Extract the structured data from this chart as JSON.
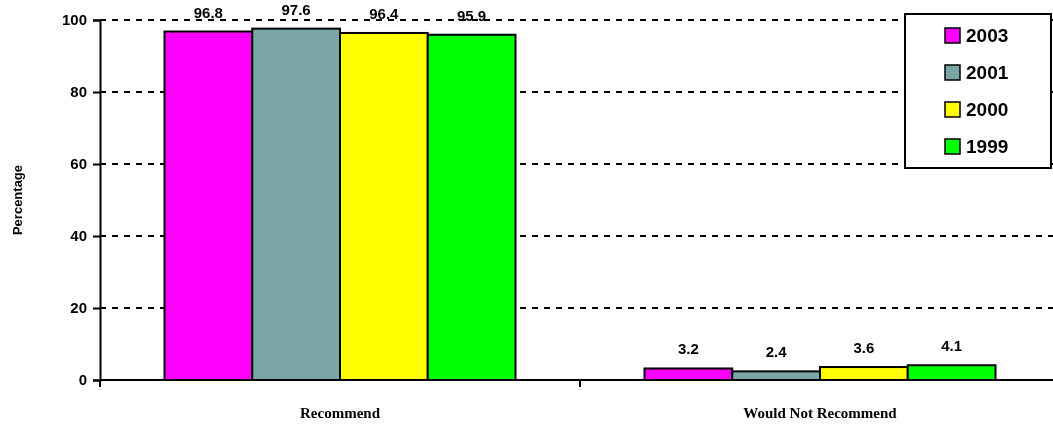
{
  "chart_data": {
    "type": "bar",
    "categories": [
      "Recommend",
      "Would Not Recommend"
    ],
    "series": [
      {
        "name": "2003",
        "color": "#ff00ff",
        "values": [
          96.8,
          3.2
        ]
      },
      {
        "name": "2001",
        "color": "#7aa6a6",
        "values": [
          97.6,
          2.4
        ]
      },
      {
        "name": "2000",
        "color": "#ffff00",
        "values": [
          96.4,
          3.6
        ]
      },
      {
        "name": "1999",
        "color": "#00ff00",
        "values": [
          95.9,
          4.1
        ]
      }
    ],
    "ylabel": "Percentage",
    "ylim": [
      0,
      100
    ],
    "yticks": [
      0,
      20,
      40,
      60,
      80,
      100
    ],
    "grid": "y",
    "legend": "top right",
    "data_labels": true
  }
}
